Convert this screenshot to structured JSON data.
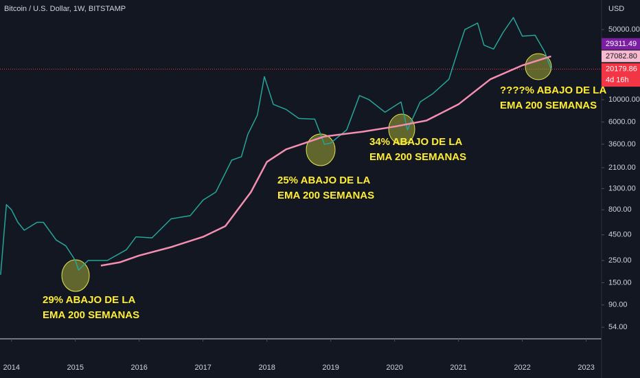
{
  "chart_data": {
    "type": "line",
    "title": "Bitcoin / U.S. Dollar, 1W, BITSTAMP",
    "currency": "USD",
    "yscale": "log",
    "grid": false,
    "xlim": [
      2013.82,
      2023.23
    ],
    "xticks": [
      2014,
      2015,
      2016,
      2017,
      2018,
      2019,
      2020,
      2021,
      2022,
      2023
    ],
    "ylim": [
      41.4,
      98600
    ],
    "yticks": [
      {
        "value": 50000,
        "label": "50000.00"
      },
      {
        "value": 10000,
        "label": "10000.00"
      },
      {
        "value": 6000,
        "label": "6000.00"
      },
      {
        "value": 3600,
        "label": "3600.00"
      },
      {
        "value": 2100,
        "label": "2100.00"
      },
      {
        "value": 1300,
        "label": "1300.00"
      },
      {
        "value": 800,
        "label": "800.00"
      },
      {
        "value": 450,
        "label": "450.00"
      },
      {
        "value": 250,
        "label": "250.00"
      },
      {
        "value": 150,
        "label": "150.00"
      },
      {
        "value": 90,
        "label": "90.00"
      },
      {
        "value": 54,
        "label": "54.00"
      }
    ],
    "series": [
      {
        "color": "#26a69a",
        "x": [
          2013.83,
          2013.92,
          2014.0,
          2014.1,
          2014.2,
          2014.4,
          2014.5,
          2014.7,
          2014.85,
          2015.0,
          2015.05,
          2015.2,
          2015.5,
          2015.8,
          2015.95,
          2016.2,
          2016.5,
          2016.8,
          2017.0,
          2017.2,
          2017.45,
          2017.6,
          2017.7,
          2017.85,
          2017.96,
          2018.1,
          2018.3,
          2018.5,
          2018.75,
          2018.9,
          2019.0,
          2019.25,
          2019.45,
          2019.6,
          2019.85,
          2020.1,
          2020.2,
          2020.4,
          2020.6,
          2020.85,
          2021.0,
          2021.1,
          2021.3,
          2021.4,
          2021.55,
          2021.7,
          2021.86,
          2022.0,
          2022.2,
          2022.35,
          2022.45
        ],
        "values": [
          180,
          900,
          800,
          600,
          500,
          600,
          600,
          400,
          350,
          250,
          200,
          250,
          250,
          320,
          430,
          420,
          650,
          700,
          1000,
          1200,
          2500,
          2700,
          4500,
          7000,
          17000,
          9000,
          8000,
          6500,
          6400,
          3600,
          3700,
          5000,
          11000,
          10000,
          7500,
          9500,
          5000,
          9500,
          11500,
          16000,
          32000,
          50000,
          58000,
          35000,
          32000,
          47000,
          66000,
          43000,
          44000,
          30000,
          20179.86
        ]
      },
      {
        "color": "#f48fb1",
        "x": [
          2015.4,
          2015.7,
          2016.0,
          2016.5,
          2017.0,
          2017.35,
          2017.75,
          2018.0,
          2018.3,
          2018.9,
          2019.5,
          2020.0,
          2020.5,
          2021.0,
          2021.5,
          2022.0,
          2022.45
        ],
        "values": [
          222,
          240,
          280,
          340,
          430,
          550,
          1200,
          2400,
          3200,
          4300,
          4800,
          5400,
          6200,
          9000,
          16000,
          22000,
          27082.8
        ]
      }
    ],
    "price_labels": [
      {
        "value": 29311.49,
        "label": "29311.49",
        "color": "#7b1fa2"
      },
      {
        "value": 27082.8,
        "label": "27082.80",
        "color": "#f8bbd0"
      },
      {
        "value": 20179.86,
        "label": "20179.86",
        "color": "#f23645"
      }
    ],
    "countdown": "4d 16h",
    "annotations": [
      [
        "29% ABAJO DE LA",
        "EMA 200 SEMANAS"
      ],
      [
        "25% ABAJO DE LA",
        "EMA 200 SEMANAS"
      ],
      [
        "34% ABAJO DE LA",
        "EMA 200 SEMANAS"
      ],
      [
        "????% ABAJO DE LA",
        "EMA 200 SEMANAS"
      ]
    ]
  }
}
